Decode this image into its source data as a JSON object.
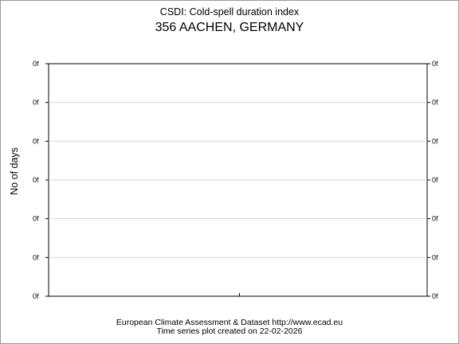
{
  "header": {
    "title": "CSDI: Cold-spell duration index",
    "subtitle": "356 AACHEN, GERMANY"
  },
  "footer": {
    "line1": "European Climate Assessment & Dataset  http://www.ecad.eu",
    "line2": "Time series plot created on 22-02-2026"
  },
  "chart_data": {
    "type": "line",
    "title": "CSDI: Cold-spell duration index",
    "subtitle": "356 AACHEN, GERMANY",
    "ylabel": "No of days",
    "xlabel": "",
    "y_tick_labels": [
      "0f",
      "0f",
      "0f",
      "0f",
      "0f",
      "0f",
      "0f"
    ],
    "x_tick_labels": [],
    "series": [],
    "grid": "horizontal",
    "legend": "none"
  }
}
